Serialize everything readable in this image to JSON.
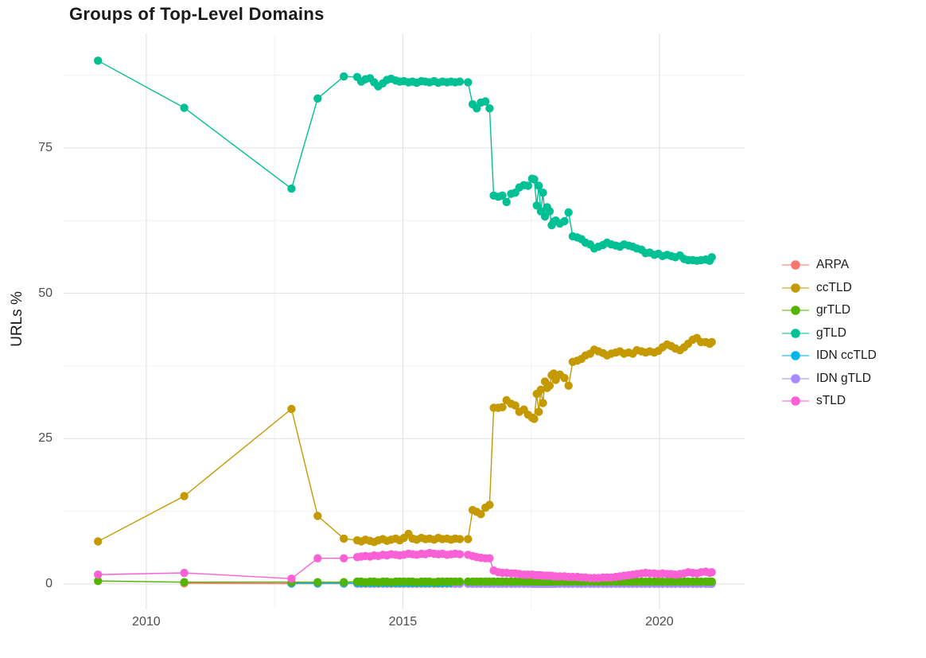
{
  "page": {
    "background": "#ffffff"
  },
  "chart": {
    "title": "Groups of Top-Level Domains",
    "ylabel": "URLs %",
    "xlabel": "",
    "x_ticks": [
      {
        "label": "2010",
        "year": 2010
      },
      {
        "label": "2015",
        "year": 2015
      },
      {
        "label": "2020",
        "year": 2020
      }
    ],
    "x_minor": [
      2012.5,
      2017.5
    ],
    "y_ticks": [
      {
        "label": "0",
        "value": 0
      },
      {
        "label": "25",
        "value": 25
      },
      {
        "label": "50",
        "value": 50
      },
      {
        "label": "75",
        "value": 75
      }
    ],
    "y_minor": [
      12.5,
      37.5,
      62.5,
      87.5
    ],
    "xlim": [
      2008.39,
      2021.66
    ],
    "ylim": [
      -4.4,
      94.7
    ],
    "grid": true,
    "legend_position": "right",
    "grid_major_color": "#e4e4e4",
    "grid_minor_color": "#f0f0f0"
  },
  "chart_data": {
    "type": "line",
    "title": "Groups of Top-Level Domains",
    "xlabel": "",
    "ylabel": "URLs %",
    "legend_position": "right",
    "x": [
      2009.06,
      2010.74,
      2012.83,
      2013.34,
      2013.85,
      2014.11,
      2014.19,
      2014.27,
      2014.36,
      2014.44,
      2014.52,
      2014.61,
      2014.69,
      2014.77,
      2014.86,
      2014.94,
      2015.02,
      2015.11,
      2015.19,
      2015.27,
      2015.36,
      2015.44,
      2015.52,
      2015.61,
      2015.69,
      2015.77,
      2015.86,
      2015.94,
      2016.02,
      2016.11,
      2016.27,
      2016.36,
      2016.44,
      2016.52,
      2016.61,
      2016.69,
      2016.77,
      2016.86,
      2016.94,
      2017.02,
      2017.11,
      2017.19,
      2017.27,
      2017.36,
      2017.44,
      2017.52,
      2017.56,
      2017.61,
      2017.65,
      2017.69,
      2017.73,
      2017.77,
      2017.81,
      2017.86,
      2017.9,
      2017.94,
      2017.98,
      2018.06,
      2018.15,
      2018.23,
      2018.31,
      2018.4,
      2018.48,
      2018.56,
      2018.65,
      2018.73,
      2018.81,
      2018.9,
      2018.98,
      2019.06,
      2019.15,
      2019.23,
      2019.31,
      2019.4,
      2019.48,
      2019.56,
      2019.65,
      2019.73,
      2019.81,
      2019.9,
      2019.98,
      2020.06,
      2020.15,
      2020.23,
      2020.31,
      2020.4,
      2020.48,
      2020.56,
      2020.65,
      2020.73,
      2020.81,
      2020.9,
      2020.98,
      2021.02
    ],
    "series": [
      {
        "name": "ARPA",
        "color": "#F8766D",
        "values": [
          null,
          0.1,
          0.05,
          0.05,
          0.05,
          0.05,
          0.05,
          0.05,
          0.05,
          0.05,
          0.05,
          0.05,
          0.05,
          0.05,
          0.05,
          0.05,
          0.05,
          0.05,
          0.05,
          0.05,
          0.05,
          0.05,
          0.05,
          0.05,
          0.05,
          0.05,
          0.05,
          0.05,
          0.05,
          0.05,
          0.05,
          0.05,
          0.05,
          0.05,
          0.05,
          0.05,
          0.05,
          0.05,
          0.05,
          0.05,
          0.05,
          0.05,
          0.05,
          0.05,
          0.05,
          0.05,
          0.05,
          0.05,
          0.05,
          0.05,
          0.05,
          0.05,
          0.05,
          0.05,
          0.05,
          0.05,
          0.05,
          0.05,
          0.05,
          0.05,
          0.05,
          0.05,
          0.05,
          0.05,
          0.05,
          0.05,
          0.05,
          0.05,
          0.05,
          0.05,
          0.05,
          0.05,
          0.05,
          0.05,
          0.05,
          0.05,
          0.05,
          0.05,
          0.05,
          0.05,
          0.05,
          0.05,
          0.05,
          0.05,
          0.05,
          0.05,
          0.05,
          0.05,
          0.05,
          0.05,
          0.05,
          0.05,
          0.05,
          0.05
        ]
      },
      {
        "name": "ccTLD",
        "color": "#C49A00",
        "values": [
          7.3,
          15.1,
          30.1,
          11.7,
          7.8,
          7.5,
          7.3,
          7.6,
          7.4,
          7.2,
          7.5,
          7.7,
          7.4,
          7.6,
          7.8,
          7.5,
          7.9,
          8.6,
          7.8,
          7.6,
          7.9,
          7.7,
          7.8,
          7.6,
          7.9,
          7.7,
          7.8,
          7.6,
          7.8,
          7.7,
          7.7,
          12.7,
          12.4,
          12,
          13.1,
          13.6,
          30.3,
          30.3,
          30.4,
          31.6,
          31,
          30.7,
          29.6,
          30,
          29.1,
          28.6,
          28.4,
          32.7,
          29.6,
          33.4,
          31.1,
          34.8,
          33.7,
          34.1,
          35.9,
          36.2,
          35.1,
          36,
          35.4,
          34.1,
          38.2,
          38.4,
          38.7,
          39.3,
          39.6,
          40.3,
          40,
          39.7,
          39.3,
          39.6,
          39.8,
          40,
          39.6,
          39.8,
          39.6,
          40.2,
          40,
          39.8,
          40,
          39.8,
          40.1,
          40.7,
          41.2,
          40.9,
          40.5,
          40.2,
          40.7,
          41.3,
          42,
          42.3,
          41.6,
          41.6,
          41.3,
          41.6
        ]
      },
      {
        "name": "grTLD",
        "color": "#53B400",
        "values": [
          0.5,
          0.3,
          0.3,
          0.3,
          0.3,
          0.4,
          0.4,
          0.3,
          0.4,
          0.4,
          0.3,
          0.4,
          0.4,
          0.3,
          0.4,
          0.4,
          0.4,
          0.4,
          0.4,
          0.3,
          0.4,
          0.4,
          0.4,
          0.3,
          0.4,
          0.4,
          0.4,
          0.4,
          0.4,
          0.4,
          0.4,
          0.4,
          0.4,
          0.4,
          0.4,
          0.4,
          0.4,
          0.4,
          0.4,
          0.4,
          0.4,
          0.4,
          0.4,
          0.4,
          0.4,
          0.4,
          0.4,
          0.4,
          0.4,
          0.4,
          0.4,
          0.4,
          0.4,
          0.4,
          0.4,
          0.4,
          0.4,
          0.4,
          0.4,
          0.4,
          0.4,
          0.4,
          0.4,
          0.4,
          0.4,
          0.4,
          0.4,
          0.4,
          0.4,
          0.4,
          0.4,
          0.4,
          0.4,
          0.4,
          0.4,
          0.4,
          0.4,
          0.4,
          0.4,
          0.4,
          0.4,
          0.4,
          0.4,
          0.4,
          0.4,
          0.4,
          0.4,
          0.4,
          0.4,
          0.4,
          0.4,
          0.4,
          0.4,
          0.4
        ]
      },
      {
        "name": "gTLD",
        "color": "#00C094",
        "values": [
          90,
          81.9,
          68,
          83.5,
          87.3,
          87.2,
          86.4,
          86.8,
          87,
          86.3,
          85.6,
          86.1,
          86.7,
          86.9,
          86.6,
          86.4,
          86.5,
          86.3,
          86.4,
          86.2,
          86.5,
          86.4,
          86.3,
          86.5,
          86.2,
          86.4,
          86.3,
          86.4,
          86.3,
          86.4,
          86.3,
          82.5,
          81.8,
          82.8,
          83,
          81.8,
          66.8,
          66.6,
          66.8,
          65.7,
          67.1,
          67.3,
          68.2,
          68.6,
          68.5,
          69.7,
          69.6,
          65.1,
          68.5,
          64.1,
          67.3,
          63.2,
          64.8,
          64.1,
          61.7,
          62.3,
          62.5,
          62,
          62.4,
          63.9,
          59.8,
          59.6,
          59.3,
          58.7,
          58.4,
          57.7,
          58,
          58.3,
          58.7,
          58.4,
          58.2,
          58,
          58.4,
          58.2,
          58,
          57.7,
          57.5,
          56.9,
          57,
          56.6,
          56.8,
          56.4,
          56.6,
          56.4,
          56.2,
          56.5,
          55.9,
          55.7,
          55.7,
          55.6,
          55.7,
          55.8,
          55.6,
          56.2
        ]
      },
      {
        "name": "IDN ccTLD",
        "color": "#00B6EB",
        "values": [
          null,
          null,
          0.1,
          0.1,
          0.1,
          0.15,
          0.15,
          0.15,
          0.15,
          0.15,
          0.15,
          0.15,
          0.15,
          0.15,
          0.15,
          0.15,
          0.15,
          0.15,
          0.15,
          0.15,
          0.15,
          0.15,
          0.15,
          0.15,
          0.15,
          0.15,
          0.15,
          0.15,
          0.15,
          0.15,
          0.15,
          0.15,
          0.15,
          0.15,
          0.15,
          0.15,
          0.15,
          0.15,
          0.15,
          0.15,
          0.15,
          0.15,
          0.15,
          0.15,
          0.15,
          0.15,
          0.15,
          0.15,
          0.15,
          0.15,
          0.15,
          0.15,
          0.15,
          0.15,
          0.15,
          0.15,
          0.15,
          0.15,
          0.15,
          0.15,
          0.15,
          0.15,
          0.15,
          0.15,
          0.15,
          0.15,
          0.15,
          0.15,
          0.15,
          0.15,
          0.15,
          0.15,
          0.15,
          0.15,
          0.15,
          0.15,
          0.15,
          0.15,
          0.15,
          0.15,
          0.15,
          0.15,
          0.15,
          0.15,
          0.15,
          0.15,
          0.15,
          0.15,
          0.15,
          0.15,
          0.15,
          0.15,
          0.15,
          0.15
        ]
      },
      {
        "name": "IDN gTLD",
        "color": "#A58AFF",
        "values": [
          null,
          null,
          null,
          null,
          null,
          null,
          null,
          null,
          null,
          null,
          null,
          null,
          null,
          null,
          null,
          null,
          null,
          null,
          null,
          null,
          null,
          null,
          null,
          null,
          null,
          null,
          null,
          null,
          0.02,
          0.02,
          0.02,
          0.02,
          0.02,
          0.02,
          0.02,
          0.02,
          0.02,
          0.02,
          0.02,
          0.02,
          0.02,
          0.02,
          0.02,
          0.02,
          0.02,
          0.02,
          0.02,
          0.02,
          0.02,
          0.02,
          0.02,
          0.02,
          0.02,
          0.02,
          0.02,
          0.02,
          0.02,
          0.02,
          0.02,
          0.02,
          0.02,
          0.02,
          0.02,
          0.02,
          0.02,
          0.02,
          0.02,
          0.02,
          0.02,
          0.02,
          0.02,
          0.02,
          0.02,
          0.02,
          0.02,
          0.02,
          0.02,
          0.02,
          0.02,
          0.02,
          0.02,
          0.02,
          0.02,
          0.02,
          0.02,
          0.02,
          0.02,
          0.02,
          0.02,
          0.02,
          0.02,
          0.02,
          0.02,
          0.02
        ]
      },
      {
        "name": "sTLD",
        "color": "#FB61D7",
        "values": [
          1.6,
          1.9,
          0.9,
          4.4,
          4.4,
          4.6,
          4.7,
          4.8,
          4.7,
          4.9,
          4.8,
          5,
          4.9,
          5.1,
          5,
          4.9,
          5,
          5.2,
          5.1,
          5,
          5.2,
          5.1,
          5.3,
          5.2,
          5.1,
          5.2,
          5,
          5.1,
          5.2,
          5.1,
          5,
          4.8,
          4.6,
          4.5,
          4.4,
          4.4,
          2.3,
          2,
          1.9,
          1.9,
          1.8,
          1.8,
          1.7,
          1.6,
          1.6,
          1.6,
          1.5,
          1.5,
          1.5,
          1.5,
          1.4,
          1.4,
          1.4,
          1.4,
          1.4,
          1.3,
          1.3,
          1.3,
          1.3,
          1.2,
          1.2,
          1.2,
          1.1,
          1.1,
          1,
          1,
          1,
          1.1,
          1.1,
          1.1,
          1.2,
          1.3,
          1.4,
          1.5,
          1.6,
          1.7,
          1.8,
          1.9,
          1.8,
          1.8,
          1.7,
          1.8,
          1.7,
          1.7,
          1.6,
          1.7,
          1.8,
          2,
          1.9,
          1.8,
          2,
          2.1,
          1.9,
          2
        ]
      }
    ]
  }
}
